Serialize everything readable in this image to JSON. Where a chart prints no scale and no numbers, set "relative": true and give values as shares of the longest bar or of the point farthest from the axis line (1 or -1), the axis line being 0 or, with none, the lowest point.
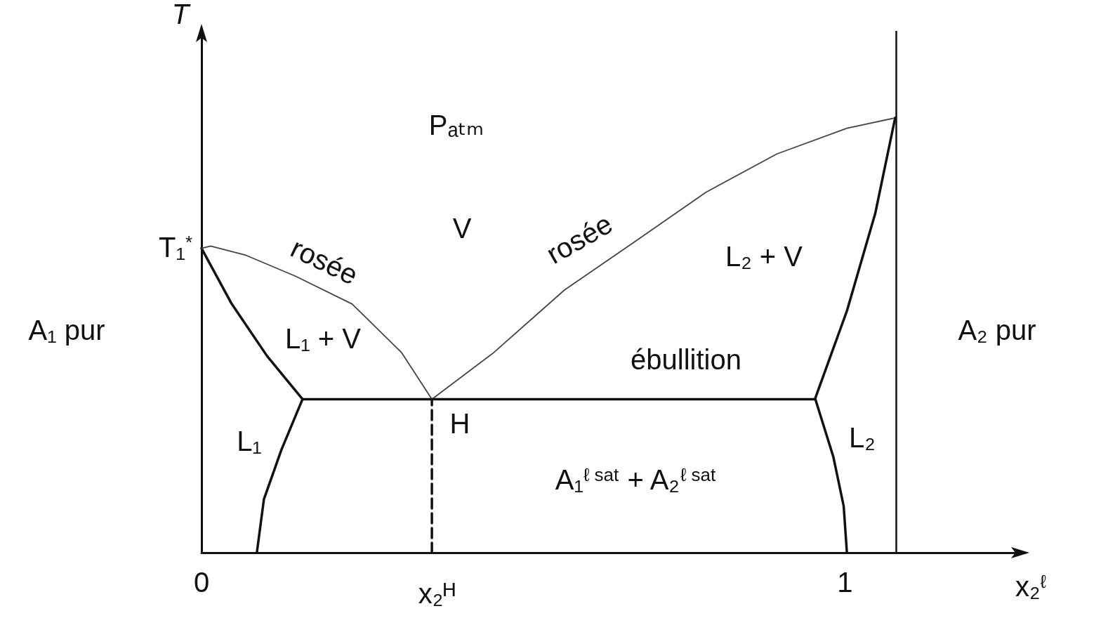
{
  "chart_data": {
    "type": "line",
    "relative": true,
    "xlabel": "x₂$^{ℓ}$",
    "ylabel": "T",
    "xlim": [
      0,
      1.28
    ],
    "xticks": [
      0,
      1
    ],
    "grid": false,
    "marker": "none",
    "series": [
      {
        "color": "#111111",
        "x": [
          0,
          0.047,
          0.102,
          0.157
        ],
        "values": [
          0.7,
          0.572,
          0.452,
          0.353
        ]
      },
      {
        "color": "#444444",
        "x": [
          0,
          0.014,
          0.069,
          0.146,
          0.234,
          0.311,
          0.358
        ],
        "values": [
          0.7,
          0.705,
          0.684,
          0.636,
          0.572,
          0.46,
          0.353
        ]
      },
      {
        "color": "#444444",
        "x": [
          0.358,
          0.454,
          0.564,
          0.674,
          0.784,
          0.894,
          1.003,
          1.078
        ],
        "values": [
          0.353,
          0.46,
          0.604,
          0.716,
          0.829,
          0.917,
          0.976,
          1.0
        ]
      },
      {
        "color": "#111111",
        "x": [
          0.954,
          1.003,
          1.047,
          1.078
        ],
        "values": [
          0.356,
          0.556,
          0.78,
          1.0
        ]
      },
      {
        "color": "#111111",
        "x": [
          0.157,
          0.954
        ],
        "values": [
          0.353,
          0.353
        ]
      },
      {
        "color": "#111111",
        "x": [
          0.157,
          0.124,
          0.097,
          0.086
        ],
        "values": [
          0.353,
          0.236,
          0.123,
          0
        ]
      },
      {
        "color": "#111111",
        "x": [
          0.954,
          0.982,
          0.998,
          1.003
        ],
        "values": [
          0.353,
          0.22,
          0.107,
          0
        ]
      },
      {
        "color": "#111111",
        "x": [
          0.358,
          0.358
        ],
        "values": [
          0,
          0.353
        ],
        "line_style": "dashed"
      }
    ],
    "ref_lines": [
      {
        "axis": "x",
        "value": 1.078,
        "color": "#111111"
      }
    ],
    "annotations": [
      "Pₐₜₘ",
      "V",
      "rosée",
      "rosée",
      "L₁ + V",
      "L₂ + V",
      "ébullition",
      "H",
      "L₁",
      "L₂",
      "A₁$^{ℓ sat}$ + A₂$^{ℓ sat}$",
      "T₁$^{*}$",
      "A₁ pur",
      "A₂ pur",
      "x₂ᴴ"
    ]
  }
}
